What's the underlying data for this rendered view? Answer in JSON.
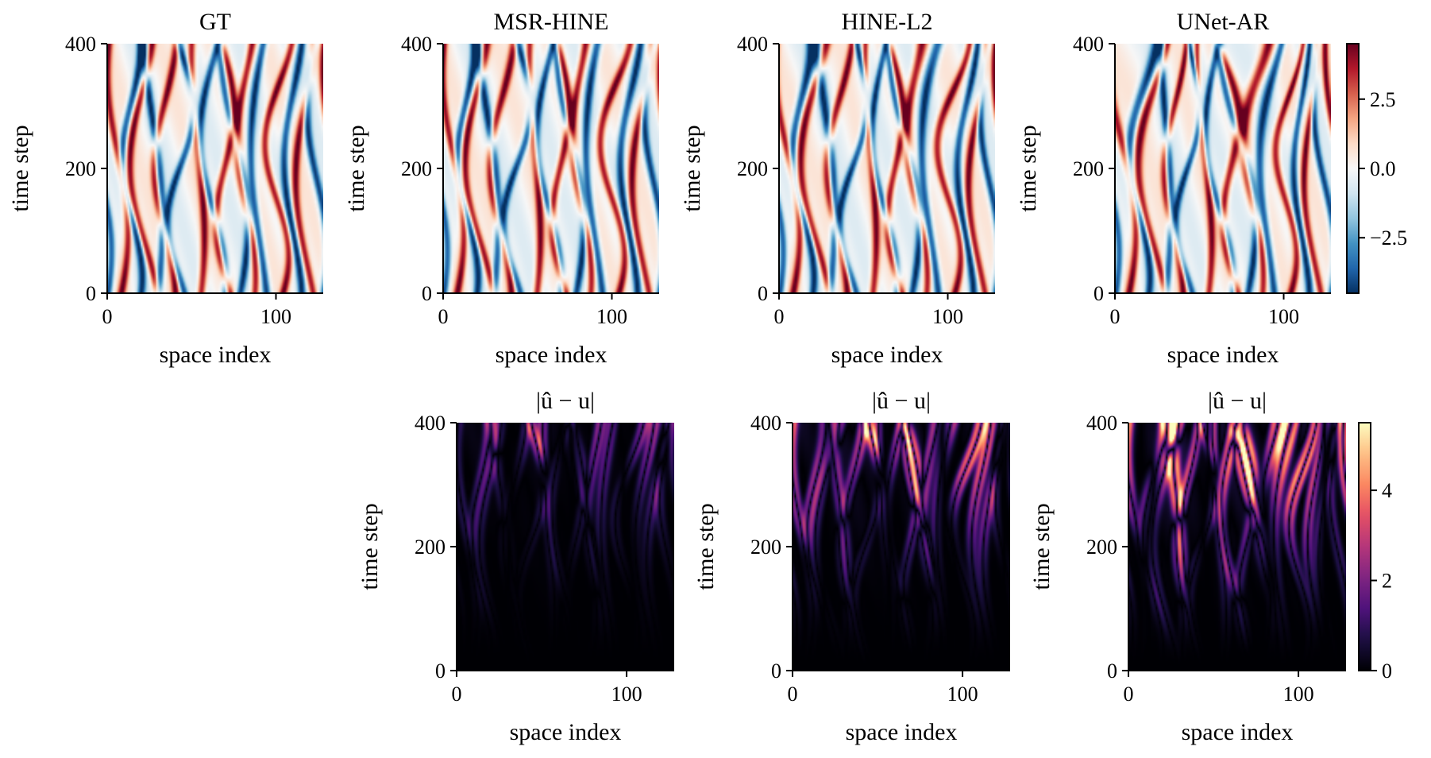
{
  "chart_data": [
    {
      "type": "heatmap",
      "id": "gt",
      "title": "GT",
      "xlabel": "space index",
      "ylabel": "time step",
      "xticks": [
        "0",
        "100"
      ],
      "xtick_values": [
        0,
        100
      ],
      "yticks": [
        "0",
        "200",
        "400"
      ],
      "ytick_values": [
        0,
        200,
        400
      ],
      "xlim": [
        0,
        128
      ],
      "ylim": [
        0,
        400
      ],
      "colormap": "RdBu_r",
      "value_range": [
        -4.5,
        4.5
      ]
    },
    {
      "type": "heatmap",
      "id": "msr",
      "title": "MSR-HINE",
      "xlabel": "space index",
      "ylabel": "time step",
      "xticks": [
        "0",
        "100"
      ],
      "xtick_values": [
        0,
        100
      ],
      "yticks": [
        "0",
        "200",
        "400"
      ],
      "ytick_values": [
        0,
        200,
        400
      ],
      "xlim": [
        0,
        128
      ],
      "ylim": [
        0,
        400
      ],
      "colormap": "RdBu_r",
      "value_range": [
        -4.5,
        4.5
      ]
    },
    {
      "type": "heatmap",
      "id": "hine",
      "title": "HINE-L2",
      "xlabel": "space index",
      "ylabel": "time step",
      "xticks": [
        "0",
        "100"
      ],
      "xtick_values": [
        0,
        100
      ],
      "yticks": [
        "0",
        "200",
        "400"
      ],
      "ytick_values": [
        0,
        200,
        400
      ],
      "xlim": [
        0,
        128
      ],
      "ylim": [
        0,
        400
      ],
      "colormap": "RdBu_r",
      "value_range": [
        -4.5,
        4.5
      ]
    },
    {
      "type": "heatmap",
      "id": "unet",
      "title": "UNet-AR",
      "xlabel": "space index",
      "ylabel": "time step",
      "xticks": [
        "0",
        "100"
      ],
      "xtick_values": [
        0,
        100
      ],
      "yticks": [
        "0",
        "200",
        "400"
      ],
      "ytick_values": [
        0,
        200,
        400
      ],
      "xlim": [
        0,
        128
      ],
      "ylim": [
        0,
        400
      ],
      "colormap": "RdBu_r",
      "value_range": [
        -4.5,
        4.5
      ]
    },
    {
      "type": "heatmap",
      "id": "err_msr",
      "title": "|û − u|",
      "xlabel": "space index",
      "ylabel": "time step",
      "xticks": [
        "0",
        "100"
      ],
      "xtick_values": [
        0,
        100
      ],
      "yticks": [
        "0",
        "200",
        "400"
      ],
      "ytick_values": [
        0,
        200,
        400
      ],
      "xlim": [
        0,
        128
      ],
      "ylim": [
        0,
        400
      ],
      "colormap": "magma",
      "value_range": [
        0,
        5.5
      ],
      "error_scale": 0.45
    },
    {
      "type": "heatmap",
      "id": "err_hine",
      "title": "|û − u|",
      "xlabel": "space index",
      "ylabel": "time step",
      "xticks": [
        "0",
        "100"
      ],
      "xtick_values": [
        0,
        100
      ],
      "yticks": [
        "0",
        "200",
        "400"
      ],
      "ytick_values": [
        0,
        200,
        400
      ],
      "xlim": [
        0,
        128
      ],
      "ylim": [
        0,
        400
      ],
      "colormap": "magma",
      "value_range": [
        0,
        5.5
      ],
      "error_scale": 1.0
    },
    {
      "type": "heatmap",
      "id": "err_unet",
      "title": "|û − u|",
      "xlabel": "space index",
      "ylabel": "time step",
      "xticks": [
        "0",
        "100"
      ],
      "xtick_values": [
        0,
        100
      ],
      "yticks": [
        "0",
        "200",
        "400"
      ],
      "ytick_values": [
        0,
        200,
        400
      ],
      "xlim": [
        0,
        128
      ],
      "ylim": [
        0,
        400
      ],
      "colormap": "magma",
      "value_range": [
        0,
        5.5
      ],
      "error_scale": 1.7
    }
  ],
  "colorbars": {
    "field": {
      "range": [
        -4.5,
        4.5
      ],
      "tick_values": [
        2.5,
        0.0,
        -2.5
      ],
      "tick_labels": [
        "2.5",
        "0.0",
        "−2.5"
      ]
    },
    "error": {
      "range": [
        0,
        5.5
      ],
      "tick_values": [
        4,
        2,
        0
      ],
      "tick_labels": [
        "4",
        "2",
        "0"
      ]
    }
  }
}
